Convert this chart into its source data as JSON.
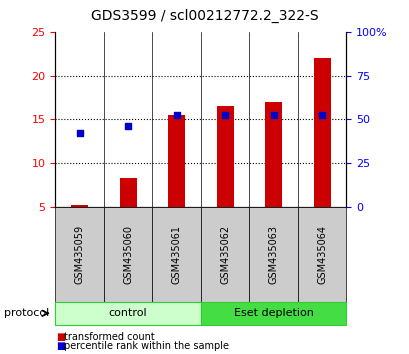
{
  "title": "GDS3599 / scl00212772.2_322-S",
  "categories": [
    "GSM435059",
    "GSM435060",
    "GSM435061",
    "GSM435062",
    "GSM435063",
    "GSM435064"
  ],
  "bar_values": [
    5.2,
    8.3,
    15.5,
    16.5,
    17.0,
    22.0
  ],
  "dot_values": [
    13.5,
    14.3,
    15.5,
    15.5,
    15.5,
    15.5
  ],
  "ylim_left": [
    5,
    25
  ],
  "ylim_right": [
    0,
    100
  ],
  "yticks_left": [
    5,
    10,
    15,
    20,
    25
  ],
  "yticks_right": [
    0,
    25,
    50,
    75,
    100
  ],
  "yticklabels_right": [
    "0",
    "25",
    "50",
    "75",
    "100%"
  ],
  "bar_color": "#cc0000",
  "dot_color": "#0000cc",
  "protocol_groups": [
    {
      "label": "control",
      "start": 0,
      "end": 3,
      "color": "#ccffcc",
      "border_color": "#33cc33"
    },
    {
      "label": "Eset depletion",
      "start": 3,
      "end": 6,
      "color": "#44dd44",
      "border_color": "#33cc33"
    }
  ],
  "sample_box_color": "#cccccc",
  "legend_items": [
    {
      "label": "transformed count",
      "color": "#cc0000"
    },
    {
      "label": "percentile rank within the sample",
      "color": "#0000cc"
    }
  ],
  "protocol_label": "protocol",
  "background_color": "#ffffff",
  "title_fontsize": 10,
  "tick_fontsize": 8,
  "label_fontsize": 8,
  "bar_width": 0.35
}
